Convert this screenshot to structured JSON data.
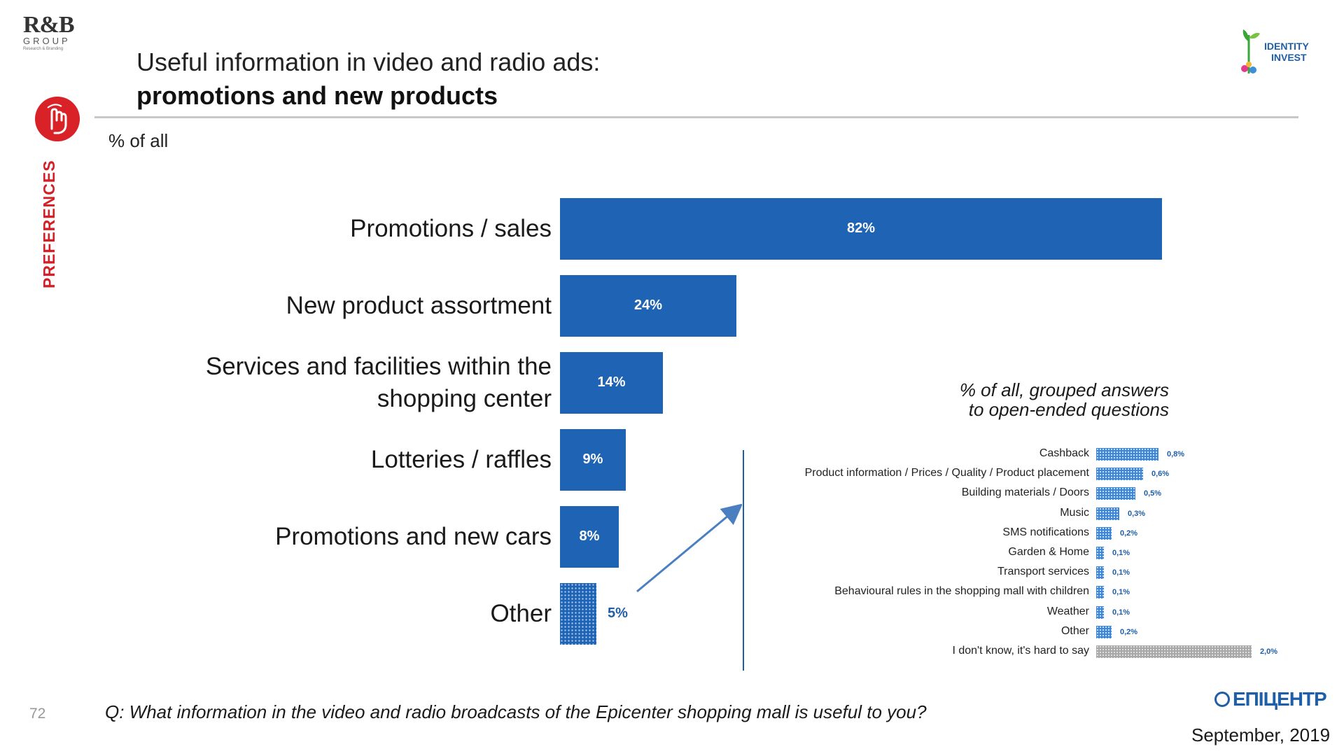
{
  "header": {
    "logo_main": "R&B",
    "logo_sub": "GROUP",
    "logo_tagline": "Research & Branding",
    "title_line1": "Useful information in video and radio ads:",
    "title_line2": "promotions and new products",
    "unit_note": "% of all",
    "section_label": "PREFERENCES",
    "partner_logo_line1": "IDENTITY",
    "partner_logo_line2": "INVEST"
  },
  "chart_data": [
    {
      "type": "bar",
      "orientation": "horizontal",
      "title": "Useful information in video and radio ads: promotions and new products",
      "unit": "% of all",
      "categories": [
        "Promotions / sales",
        "New product assortment",
        "Services and facilities within the shopping center",
        "Lotteries / raffles",
        "Promotions and new cars",
        "Other"
      ],
      "values": [
        82,
        24,
        14,
        9,
        8,
        5
      ],
      "labels": [
        "82%",
        "24%",
        "14%",
        "9%",
        "8%",
        "5%"
      ],
      "xlim": [
        0,
        82
      ]
    },
    {
      "type": "bar",
      "orientation": "horizontal",
      "title": "% of all, grouped answers to open-ended questions",
      "categories": [
        "Cashback",
        "Product information / Prices / Quality / Product placement",
        "Building materials / Doors",
        "Music",
        "SMS notifications",
        "Garden & Home",
        "Transport services",
        "Behavioural rules in the shopping mall with children",
        "Weather",
        "Other",
        "I don't know, it's hard to say"
      ],
      "values": [
        0.8,
        0.6,
        0.5,
        0.3,
        0.2,
        0.1,
        0.1,
        0.1,
        0.1,
        0.2,
        2.0
      ],
      "labels": [
        "0,8%",
        "0,6%",
        "0,5%",
        "0,3%",
        "0,2%",
        "0,1%",
        "0,1%",
        "0,1%",
        "0,1%",
        "0,2%",
        "2,0%"
      ],
      "xlim": [
        0,
        2.0
      ]
    }
  ],
  "main_labels": [
    [
      "Promotions / sales"
    ],
    [
      "New product assortment"
    ],
    [
      "Services and facilities within the",
      "shopping center"
    ],
    [
      "Lotteries / raffles"
    ],
    [
      "Promotions and new cars"
    ],
    [
      "Other"
    ]
  ],
  "sub_title_line1": "% of all, grouped answers",
  "sub_title_line2": "to open-ended questions",
  "footer": {
    "page_number": "72",
    "question": "Q: What information in the video and radio broadcasts of the Epicenter shopping mall is useful to you?",
    "brand": "ЕПІЦЕНТР",
    "date": "September, 2019"
  },
  "colors": {
    "bar": "#1f63b4",
    "accent": "#d32027",
    "text": "#1a1a1a"
  }
}
